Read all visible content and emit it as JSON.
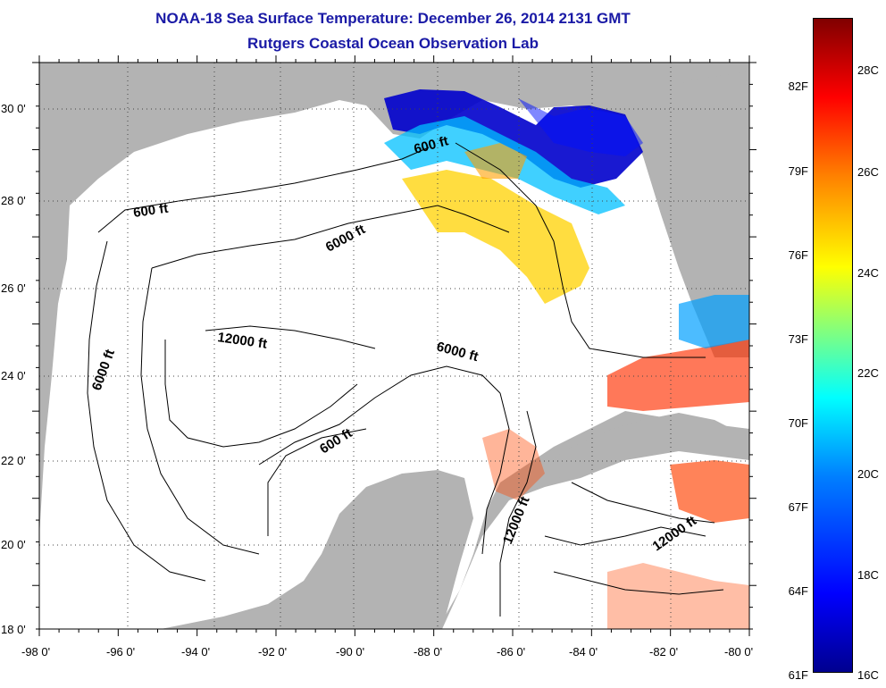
{
  "header": {
    "title": "NOAA-18 Sea Surface Temperature:  December 26, 2014 2131 GMT",
    "subtitle": "Rutgers Coastal Ocean Observation Lab"
  },
  "map": {
    "lon_range": [
      -98,
      -80
    ],
    "lat_range": [
      18,
      31
    ],
    "lon_ticks": [
      "-98 0'",
      "-96 0'",
      "-94 0'",
      "-92 0'",
      "-90 0'",
      "-88 0'",
      "-86 0'",
      "-84 0'",
      "-82 0'",
      "-80 0'"
    ],
    "lat_ticks": [
      "18 0'",
      "20 0'",
      "22 0'",
      "24 0'",
      "26 0'",
      "28 0'",
      "30 0'"
    ],
    "land_color": "#b3b3b3",
    "water_color": "#ffffff",
    "grid": "dotted",
    "contour_labels": [
      "600 ft",
      "600 ft",
      "6000 ft",
      "12000 ft",
      "6000 ft",
      "6000 ft",
      "600 ft",
      "12000 ft",
      "12000 ft"
    ]
  },
  "colorbar": {
    "fahrenheit": [
      "82F",
      "79F",
      "76F",
      "73F",
      "70F",
      "67F",
      "64F",
      "61F"
    ],
    "celsius": [
      "28C",
      "26C",
      "24C",
      "22C",
      "20C",
      "18C",
      "16C"
    ],
    "range_c": [
      16,
      30
    ]
  }
}
